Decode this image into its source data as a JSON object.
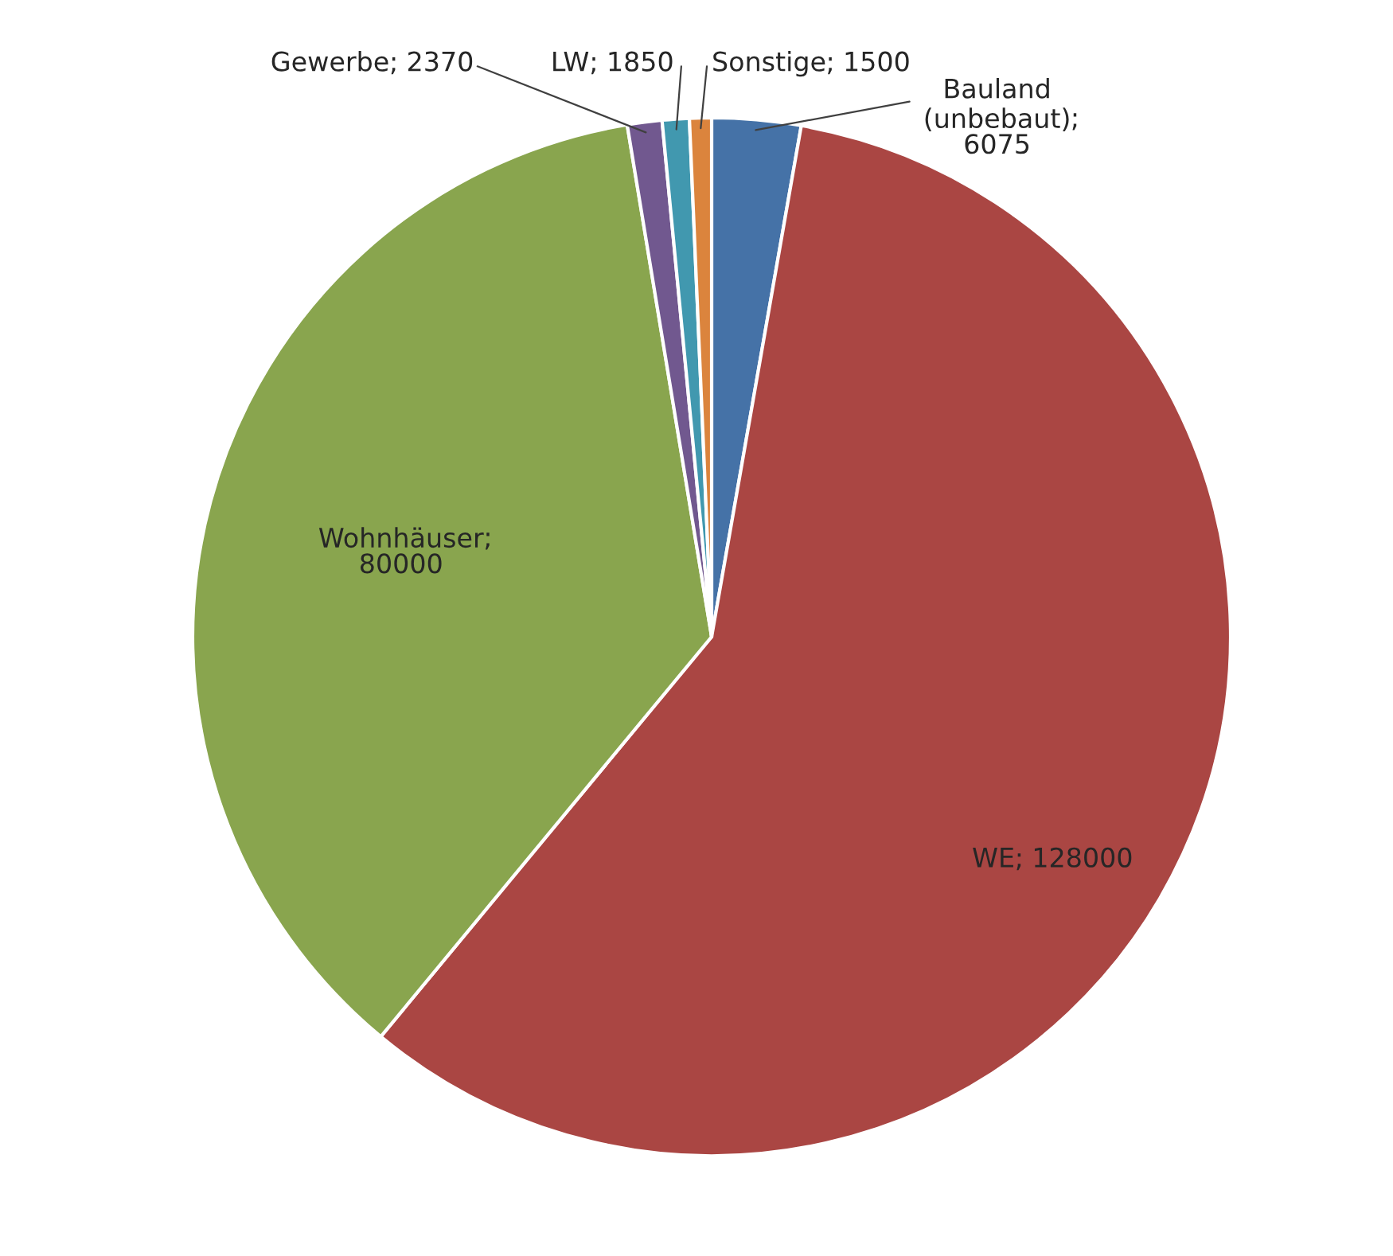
{
  "chart_data": {
    "type": "pie",
    "categories": [
      "Bauland (unbebaut)",
      "WE",
      "Wohnhäuser",
      "Gewerbe",
      "LW",
      "Sonstige"
    ],
    "values": [
      6075,
      128000,
      80000,
      2370,
      1850,
      1500
    ],
    "colors": [
      "#4572a7",
      "#aa4643",
      "#89a54e",
      "#71588f",
      "#4198af",
      "#db843d"
    ],
    "data_labels": true
  }
}
